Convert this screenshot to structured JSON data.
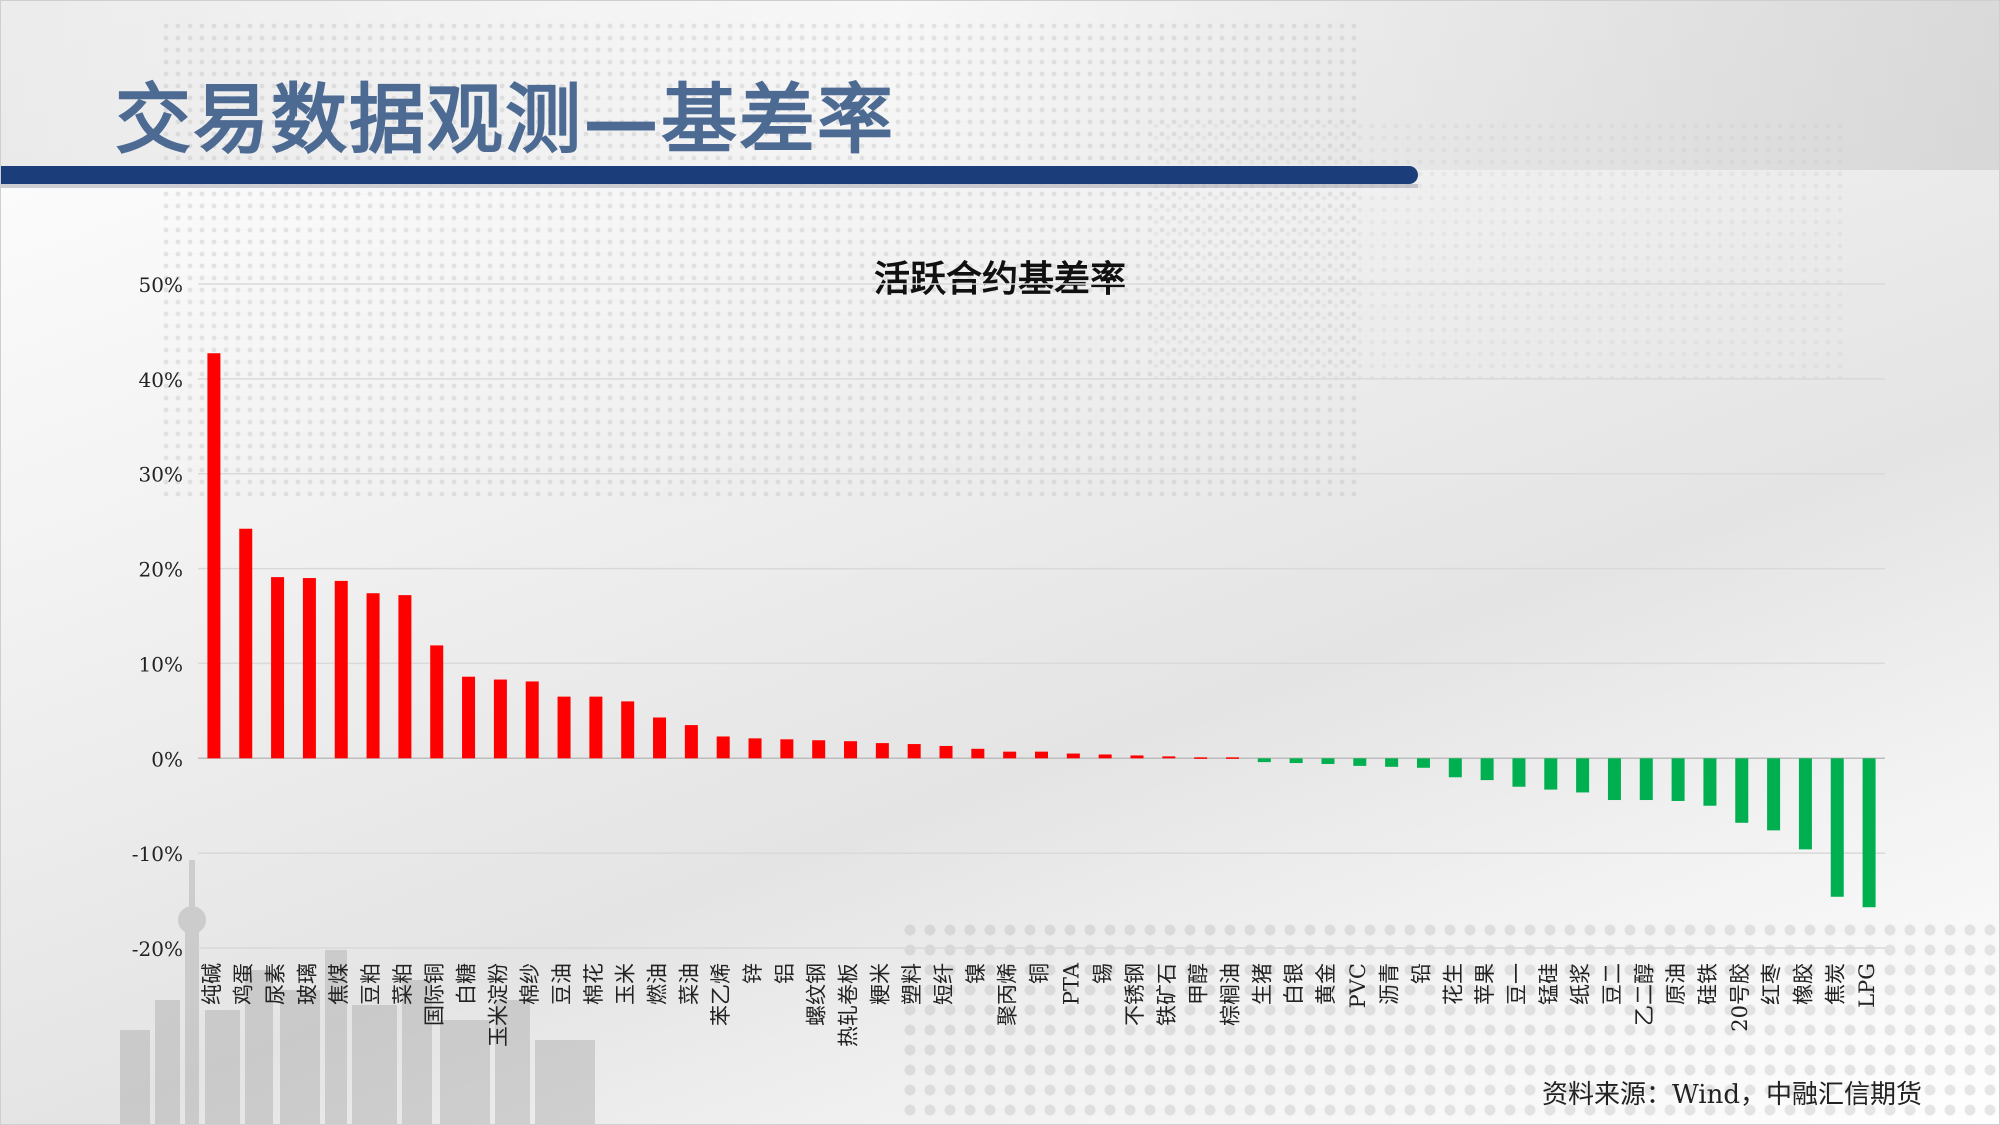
{
  "page": {
    "title": "交易数据观测—基差率",
    "source": "资料来源：Wind，中融汇信期货"
  },
  "colors": {
    "positive": "#ff0000",
    "negative": "#00b050",
    "title_bar": "#1b3d7a",
    "title_text": "#4d6a93"
  },
  "chart_data": {
    "type": "bar",
    "title": "活跃合约基差率",
    "xlabel": "",
    "ylabel": "",
    "ylim": [
      -0.2,
      0.5
    ],
    "yticks": [
      0.5,
      0.4,
      0.3,
      0.2,
      0.1,
      0.0,
      -0.1,
      -0.2
    ],
    "ytick_labels": [
      "50%",
      "40%",
      "30%",
      "20%",
      "10%",
      "0%",
      "-10%",
      "-20%"
    ],
    "grid": true,
    "legend": "none",
    "categories": [
      "纯碱",
      "鸡蛋",
      "尿素",
      "玻璃",
      "焦煤",
      "豆粕",
      "菜粕",
      "国际铜",
      "白糖",
      "玉米淀粉",
      "棉纱",
      "豆油",
      "棉花",
      "玉米",
      "燃油",
      "菜油",
      "苯乙烯",
      "锌",
      "铝",
      "螺纹钢",
      "热轧卷板",
      "粳米",
      "塑料",
      "短纤",
      "镍",
      "聚丙烯",
      "铜",
      "PTA",
      "锡",
      "不锈钢",
      "铁矿石",
      "甲醇",
      "棕榈油",
      "生猪",
      "白银",
      "黄金",
      "PVC",
      "沥青",
      "铅",
      "花生",
      "苹果",
      "豆一",
      "锰硅",
      "纸浆",
      "豆二",
      "乙二醇",
      "原油",
      "硅铁",
      "20号胶",
      "红枣",
      "橡胶",
      "焦炭",
      "LPG"
    ],
    "values": [
      0.427,
      0.242,
      0.191,
      0.19,
      0.187,
      0.174,
      0.172,
      0.119,
      0.086,
      0.083,
      0.081,
      0.065,
      0.065,
      0.06,
      0.043,
      0.035,
      0.023,
      0.021,
      0.02,
      0.019,
      0.018,
      0.016,
      0.015,
      0.013,
      0.01,
      0.007,
      0.007,
      0.005,
      0.004,
      0.003,
      0.002,
      0.001,
      0.001,
      -0.004,
      -0.005,
      -0.006,
      -0.008,
      -0.009,
      -0.01,
      -0.02,
      -0.023,
      -0.03,
      -0.033,
      -0.036,
      -0.044,
      -0.044,
      -0.045,
      -0.05,
      -0.068,
      -0.076,
      -0.096,
      -0.146,
      -0.157
    ]
  }
}
